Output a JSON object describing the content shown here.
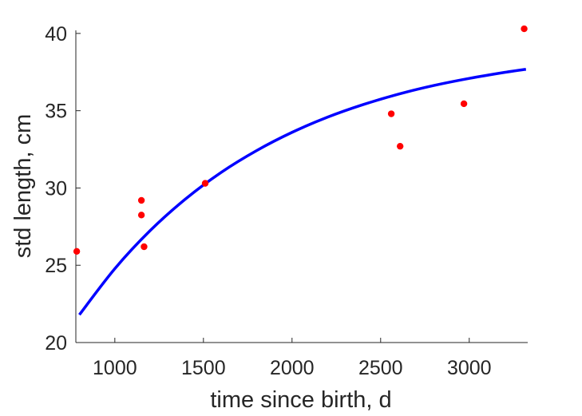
{
  "chart_data": {
    "type": "scatter",
    "title": "",
    "xlabel": "time since birth, d",
    "ylabel": "std length, cm",
    "xlim": [
      780,
      3330
    ],
    "ylim": [
      20,
      40.2
    ],
    "xticks": [
      1000,
      1500,
      2000,
      2500,
      3000
    ],
    "yticks": [
      20,
      25,
      30,
      35,
      40
    ],
    "grid": false,
    "legend": "none",
    "series": [
      {
        "type": "scatter",
        "color": "#ff0000",
        "points": [
          {
            "x": 785,
            "y": 25.9
          },
          {
            "x": 1150,
            "y": 29.2
          },
          {
            "x": 1150,
            "y": 28.25
          },
          {
            "x": 1165,
            "y": 26.2
          },
          {
            "x": 1510,
            "y": 30.3
          },
          {
            "x": 2560,
            "y": 34.8
          },
          {
            "x": 2610,
            "y": 32.7
          },
          {
            "x": 2970,
            "y": 35.45
          },
          {
            "x": 3310,
            "y": 40.3
          }
        ]
      },
      {
        "type": "line",
        "color": "#0000ff",
        "points": [
          {
            "x": 800,
            "y": 21.8
          },
          {
            "x": 1000,
            "y": 24.78
          },
          {
            "x": 1200,
            "y": 27.25
          },
          {
            "x": 1400,
            "y": 29.3
          },
          {
            "x": 1600,
            "y": 31.01
          },
          {
            "x": 1800,
            "y": 32.42
          },
          {
            "x": 2000,
            "y": 33.6
          },
          {
            "x": 2200,
            "y": 34.58
          },
          {
            "x": 2400,
            "y": 35.39
          },
          {
            "x": 2600,
            "y": 36.07
          },
          {
            "x": 2800,
            "y": 36.63
          },
          {
            "x": 3000,
            "y": 37.09
          },
          {
            "x": 3200,
            "y": 37.48
          },
          {
            "x": 3320,
            "y": 37.68
          }
        ]
      }
    ]
  }
}
